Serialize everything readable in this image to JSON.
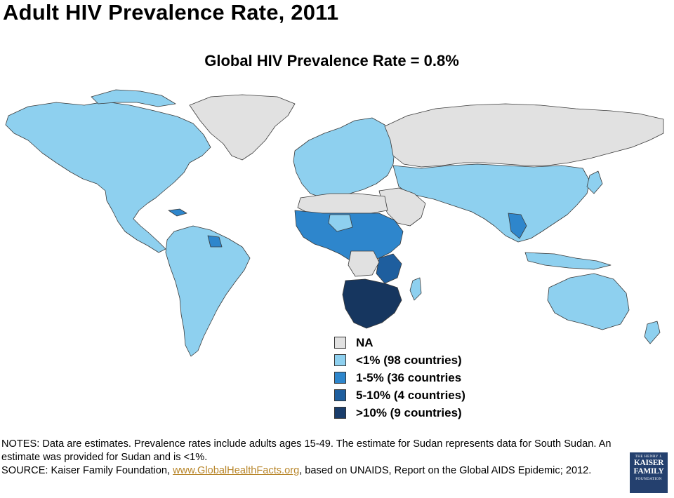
{
  "title": "Adult HIV Prevalence Rate, 2011",
  "subtitle": "Global HIV Prevalence Rate = 0.8%",
  "colors": {
    "na": "#e1e1e1",
    "lt1": "#8ed0ef",
    "c1_5": "#2e86cc",
    "c5_10": "#1e5e9e",
    "gt10": "#16365f",
    "border": "#3a3a3a"
  },
  "legend": [
    {
      "label": "NA",
      "color": "#e1e1e1"
    },
    {
      "label": "<1% (98 countries)",
      "color": "#8ed0ef"
    },
    {
      "label": "1-5% (36 countries",
      "color": "#2e86cc"
    },
    {
      "label": "5-10% (4 countries)",
      "color": "#1e5e9e"
    },
    {
      "label": ">10% (9 countries)",
      "color": "#1a3d6b"
    }
  ],
  "notes": {
    "line1": "NOTES: Data are estimates. Prevalence rates include adults ages 15-49. The estimate for Sudan represents data for South Sudan. An estimate was provided for Sudan and is <1%.",
    "source_prefix": "SOURCE: Kaiser Family Foundation, ",
    "source_link": "www.GlobalHealthFacts.org",
    "source_suffix": ", based on UNAIDS, Report on the Global AIDS Epidemic; 2012."
  },
  "logo": {
    "top": "THE HENRY J.",
    "line1": "KAISER",
    "line2": "FAMILY",
    "bottom": "FOUNDATION"
  }
}
